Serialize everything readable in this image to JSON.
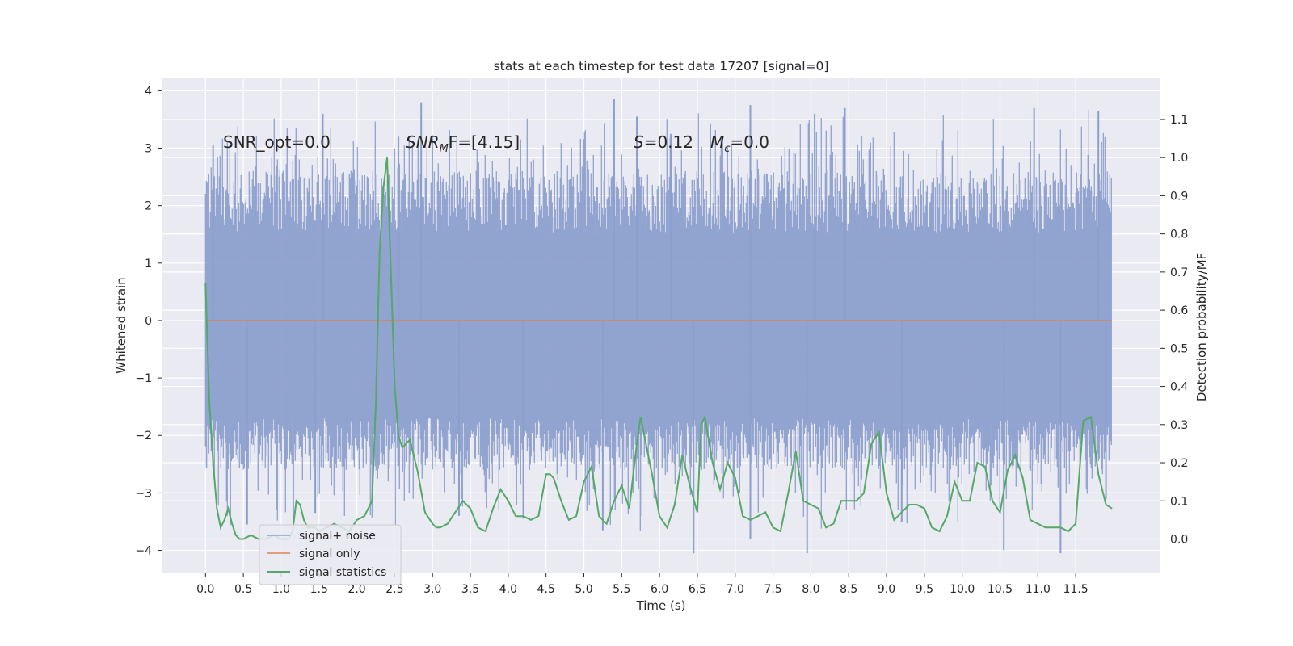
{
  "chart_data": {
    "type": "line",
    "title": "stats at each timestep for test data 17207 [signal=0]",
    "xlabel": "Time (s)",
    "ylabel": "Whitened strain",
    "y2label": "Detection probability/MF",
    "xlim": [
      -0.58,
      12.62
    ],
    "ylim": [
      -4.4,
      4.23
    ],
    "y2lim": [
      -0.09,
      1.21
    ],
    "x_ticks": [
      0.0,
      0.5,
      1.0,
      1.5,
      2.0,
      2.5,
      3.0,
      3.5,
      4.0,
      4.5,
      5.0,
      5.5,
      6.0,
      6.5,
      7.0,
      7.5,
      8.0,
      8.5,
      9.0,
      9.5,
      10.0,
      10.5,
      11.0,
      11.5
    ],
    "x_tick_labels": [
      "0.0",
      "0.5",
      "1.0",
      "1.5",
      "2.0",
      "2.5",
      "3.0",
      "3.5",
      "4.0",
      "4.5",
      "5.0",
      "5.5",
      "6.0",
      "6.5",
      "7.0",
      "7.5",
      "8.0",
      "8.5",
      "9.0",
      "9.5",
      "10.0",
      "10.5",
      "11.0",
      "11.5"
    ],
    "y_ticks": [
      -4,
      -3,
      -2,
      -1,
      0,
      1,
      2,
      3,
      4
    ],
    "y_tick_labels": [
      "−4",
      "−3",
      "−2",
      "−1",
      "0",
      "1",
      "2",
      "3",
      "4"
    ],
    "y2_ticks": [
      0.0,
      0.1,
      0.2,
      0.3,
      0.4,
      0.5,
      0.6,
      0.7,
      0.8,
      0.9,
      1.0,
      1.1
    ],
    "y2_tick_labels": [
      "0.0",
      "0.1",
      "0.2",
      "0.3",
      "0.4",
      "0.5",
      "0.6",
      "0.7",
      "0.8",
      "0.9",
      "1.0",
      "1.1"
    ],
    "grid": true,
    "legend_position": "lower-left",
    "legend": [
      "signal+ noise",
      "signal only",
      "signal statistics"
    ],
    "annotations": {
      "snr_opt": "SNR_opt=0.0",
      "snr_mf_main": "SNR",
      "snr_mf_sub": "M",
      "snr_mf_rest": "F=[4.15]",
      "s_label": "S",
      "s_value": "=0.12",
      "mc_label": "M",
      "mc_sub": "c",
      "mc_value": "=0.0"
    },
    "series": [
      {
        "name": "signal+ noise",
        "axis": "left",
        "color": "#8c9fcc",
        "description_of_shape": "dense noise band",
        "x_start": 0.0,
        "x_end": 11.98,
        "envelope_upper_typical": 1.8,
        "envelope_lower_typical": -2.0,
        "peaks_upper": [
          [
            0.1,
            3.05
          ],
          [
            1.55,
            3.6
          ],
          [
            2.55,
            3.2
          ],
          [
            2.85,
            3.8
          ],
          [
            5.4,
            3.85
          ],
          [
            5.7,
            3.55
          ],
          [
            6.15,
            3.25
          ],
          [
            7.2,
            3.75
          ],
          [
            8.05,
            3.6
          ],
          [
            8.45,
            3.7
          ],
          [
            10.95,
            3.7
          ],
          [
            11.8,
            3.65
          ]
        ],
        "peaks_lower": [
          [
            0.55,
            -3.55
          ],
          [
            1.45,
            -3.35
          ],
          [
            3.35,
            -3.4
          ],
          [
            4.2,
            -3.45
          ],
          [
            5.25,
            -3.65
          ],
          [
            6.45,
            -4.05
          ],
          [
            7.2,
            -3.8
          ],
          [
            7.95,
            -4.05
          ],
          [
            9.2,
            -3.5
          ],
          [
            10.55,
            -4.0
          ],
          [
            11.3,
            -4.05
          ],
          [
            11.9,
            -3.1
          ]
        ]
      },
      {
        "name": "signal only",
        "axis": "left",
        "color": "#dd8452",
        "x": [
          0.0,
          11.98
        ],
        "y": [
          0.0,
          0.0
        ]
      },
      {
        "name": "signal statistics",
        "axis": "right",
        "color": "#55a868",
        "x": [
          0.0,
          0.05,
          0.1,
          0.15,
          0.2,
          0.25,
          0.3,
          0.35,
          0.4,
          0.45,
          0.5,
          0.6,
          0.7,
          0.8,
          0.9,
          1.0,
          1.1,
          1.15,
          1.2,
          1.25,
          1.3,
          1.35,
          1.4,
          1.45,
          1.5,
          1.6,
          1.7,
          1.8,
          1.9,
          2.0,
          2.1,
          2.2,
          2.25,
          2.3,
          2.35,
          2.4,
          2.45,
          2.5,
          2.55,
          2.6,
          2.65,
          2.7,
          2.8,
          2.9,
          3.0,
          3.05,
          3.1,
          3.2,
          3.3,
          3.4,
          3.5,
          3.6,
          3.7,
          3.8,
          3.9,
          4.0,
          4.1,
          4.2,
          4.3,
          4.4,
          4.5,
          4.55,
          4.6,
          4.7,
          4.8,
          4.9,
          5.0,
          5.1,
          5.2,
          5.3,
          5.4,
          5.5,
          5.6,
          5.7,
          5.75,
          5.8,
          5.9,
          6.0,
          6.1,
          6.2,
          6.3,
          6.4,
          6.5,
          6.55,
          6.6,
          6.7,
          6.8,
          6.9,
          7.0,
          7.1,
          7.2,
          7.3,
          7.4,
          7.5,
          7.6,
          7.7,
          7.8,
          7.9,
          8.0,
          8.1,
          8.2,
          8.3,
          8.4,
          8.5,
          8.6,
          8.7,
          8.8,
          8.9,
          9.0,
          9.1,
          9.2,
          9.3,
          9.4,
          9.5,
          9.6,
          9.7,
          9.8,
          9.9,
          10.0,
          10.1,
          10.2,
          10.3,
          10.4,
          10.5,
          10.6,
          10.7,
          10.8,
          10.9,
          11.0,
          11.1,
          11.2,
          11.3,
          11.4,
          11.5,
          11.6,
          11.7,
          11.8,
          11.9,
          11.98
        ],
        "y": [
          0.67,
          0.36,
          0.2,
          0.08,
          0.03,
          0.05,
          0.08,
          0.04,
          0.01,
          0.0,
          0.0,
          0.01,
          0.0,
          0.0,
          0.01,
          0.0,
          0.0,
          0.02,
          0.1,
          0.09,
          0.05,
          0.03,
          0.03,
          0.03,
          0.02,
          0.03,
          0.04,
          0.03,
          0.02,
          0.05,
          0.06,
          0.1,
          0.35,
          0.75,
          0.92,
          1.0,
          0.7,
          0.4,
          0.27,
          0.24,
          0.25,
          0.26,
          0.18,
          0.07,
          0.04,
          0.03,
          0.03,
          0.04,
          0.07,
          0.1,
          0.08,
          0.03,
          0.02,
          0.08,
          0.13,
          0.1,
          0.06,
          0.06,
          0.05,
          0.06,
          0.17,
          0.17,
          0.16,
          0.1,
          0.05,
          0.06,
          0.15,
          0.19,
          0.06,
          0.04,
          0.1,
          0.14,
          0.08,
          0.25,
          0.32,
          0.27,
          0.17,
          0.06,
          0.03,
          0.09,
          0.22,
          0.14,
          0.07,
          0.3,
          0.32,
          0.2,
          0.13,
          0.2,
          0.16,
          0.06,
          0.05,
          0.06,
          0.07,
          0.03,
          0.02,
          0.12,
          0.23,
          0.1,
          0.09,
          0.08,
          0.03,
          0.04,
          0.1,
          0.1,
          0.1,
          0.12,
          0.25,
          0.28,
          0.12,
          0.05,
          0.07,
          0.09,
          0.09,
          0.08,
          0.03,
          0.02,
          0.06,
          0.15,
          0.1,
          0.1,
          0.2,
          0.19,
          0.1,
          0.07,
          0.18,
          0.22,
          0.16,
          0.05,
          0.04,
          0.03,
          0.03,
          0.03,
          0.02,
          0.04,
          0.31,
          0.32,
          0.17,
          0.09,
          0.08
        ]
      }
    ]
  }
}
